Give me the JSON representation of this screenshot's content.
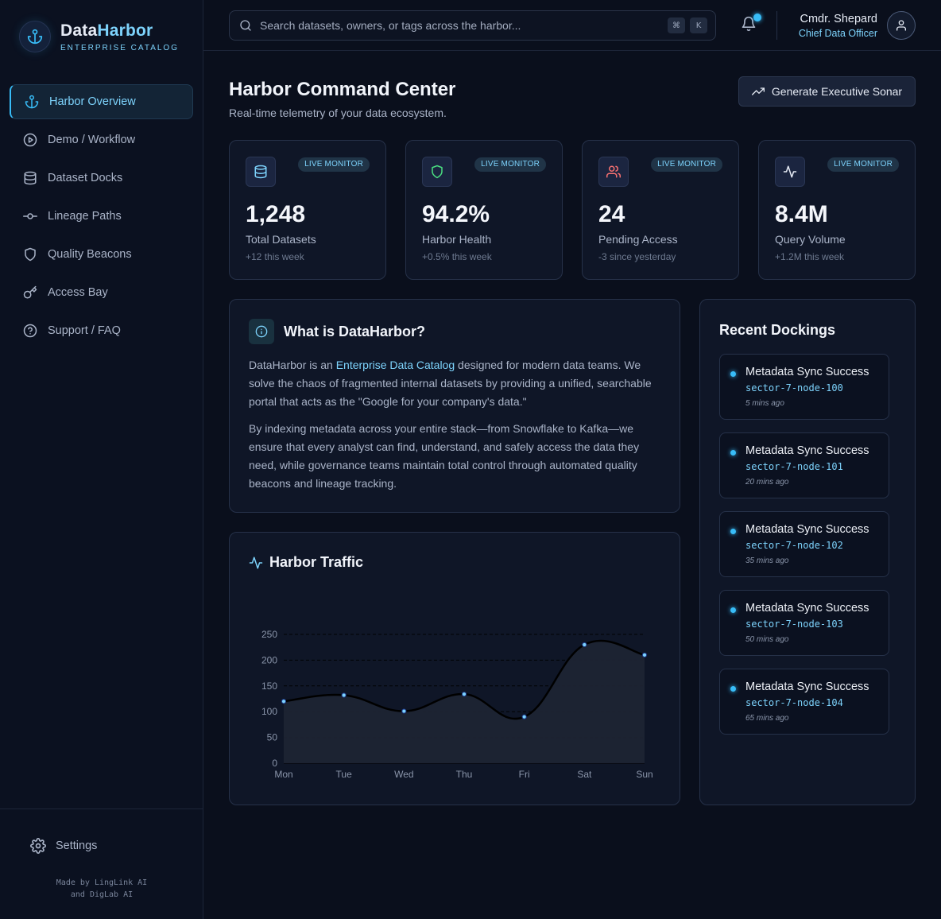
{
  "brand": {
    "name_part1": "Data",
    "name_part2": "Harbor",
    "subtitle": "ENTERPRISE CATALOG"
  },
  "nav": {
    "items": [
      {
        "label": "Harbor Overview",
        "icon": "anchor-icon",
        "active": true
      },
      {
        "label": "Demo / Workflow",
        "icon": "play-circle-icon"
      },
      {
        "label": "Dataset Docks",
        "icon": "database-icon"
      },
      {
        "label": "Lineage Paths",
        "icon": "git-commit-icon"
      },
      {
        "label": "Quality Beacons",
        "icon": "shield-icon"
      },
      {
        "label": "Access Bay",
        "icon": "key-icon"
      },
      {
        "label": "Support / FAQ",
        "icon": "help-circle-icon"
      }
    ],
    "settings_label": "Settings",
    "credits_line1": "Made by LingLink AI",
    "credits_line2": "and DigLab AI"
  },
  "search": {
    "placeholder": "Search datasets, owners, or tags across the harbor...",
    "shortcut_keys": [
      "⌘",
      "K"
    ]
  },
  "user": {
    "name": "Cmdr. Shepard",
    "role": "Chief Data Officer"
  },
  "page": {
    "title": "Harbor Command Center",
    "subtitle": "Real-time telemetry of your data ecosystem.",
    "action_label": "Generate Executive Sonar"
  },
  "stats": [
    {
      "badge": "LIVE MONITOR",
      "value": "1,248",
      "label": "Total Datasets",
      "delta": "+12 this week",
      "icon": "database-icon",
      "icon_color": "#7dd3fc"
    },
    {
      "badge": "LIVE MONITOR",
      "value": "94.2%",
      "label": "Harbor Health",
      "delta": "+0.5% this week",
      "icon": "shield-icon",
      "icon_color": "#4ade80"
    },
    {
      "badge": "LIVE MONITOR",
      "value": "24",
      "label": "Pending Access",
      "delta": "-3 since yesterday",
      "icon": "users-icon",
      "icon_color": "#f87171"
    },
    {
      "badge": "LIVE MONITOR",
      "value": "8.4M",
      "label": "Query Volume",
      "delta": "+1.2M this week",
      "icon": "activity-icon",
      "icon_color": "#e6ebf5"
    }
  ],
  "about": {
    "title": "What is DataHarbor?",
    "p1_before": "DataHarbor is an ",
    "p1_highlight": "Enterprise Data Catalog",
    "p1_after": " designed for modern data teams. We solve the chaos of fragmented internal datasets by providing a unified, searchable portal that acts as the \"Google for your company's data.\"",
    "p2": "By indexing metadata across your entire stack—from Snowflake to Kafka—we ensure that every analyst can find, understand, and safely access the data they need, while governance teams maintain total control through automated quality beacons and lineage tracking."
  },
  "traffic": {
    "title": "Harbor Traffic"
  },
  "chart_data": {
    "type": "area",
    "categories": [
      "Mon",
      "Tue",
      "Wed",
      "Thu",
      "Fri",
      "Sat",
      "Sun"
    ],
    "values": [
      120,
      132,
      101,
      134,
      90,
      230,
      210
    ],
    "ylim": [
      0,
      250
    ],
    "yticks": [
      0,
      50,
      100,
      150,
      200,
      250
    ],
    "grid": true,
    "line_color": "#000000",
    "fill_color": "#1e2433",
    "point_color": "#7dd3fc"
  },
  "dockings": {
    "title": "Recent Dockings",
    "items": [
      {
        "title": "Metadata Sync Success",
        "node": "sector-7-node-100",
        "time": "5 mins ago"
      },
      {
        "title": "Metadata Sync Success",
        "node": "sector-7-node-101",
        "time": "20 mins ago"
      },
      {
        "title": "Metadata Sync Success",
        "node": "sector-7-node-102",
        "time": "35 mins ago"
      },
      {
        "title": "Metadata Sync Success",
        "node": "sector-7-node-103",
        "time": "50 mins ago"
      },
      {
        "title": "Metadata Sync Success",
        "node": "sector-7-node-104",
        "time": "65 mins ago"
      }
    ]
  }
}
